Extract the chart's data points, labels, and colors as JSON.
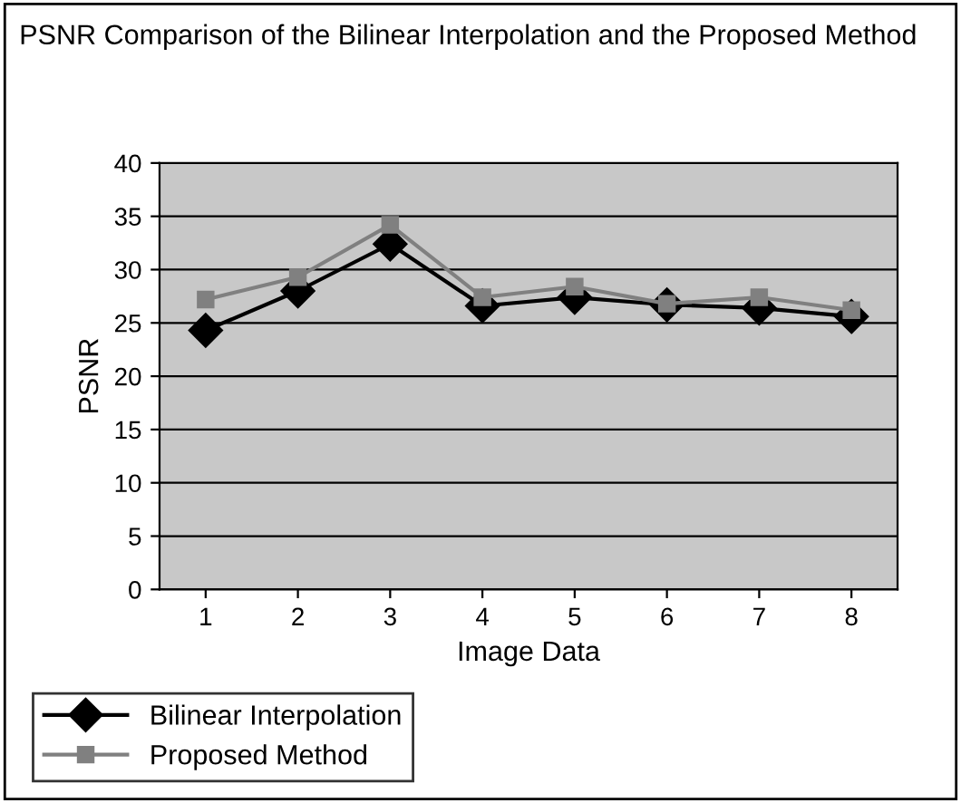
{
  "chart_data": {
    "type": "line",
    "title": "PSNR Comparison of the Bilinear Interpolation and the Proposed Method",
    "xlabel": "Image Data",
    "ylabel": "PSNR",
    "categories": [
      "1",
      "2",
      "3",
      "4",
      "5",
      "6",
      "7",
      "8"
    ],
    "series": [
      {
        "name": "Bilinear Interpolation",
        "color": "#000000",
        "marker": "diamond",
        "values": [
          24.3,
          28.0,
          32.4,
          26.6,
          27.4,
          26.7,
          26.4,
          25.6
        ]
      },
      {
        "name": "Proposed Method",
        "color": "#808080",
        "marker": "square",
        "values": [
          27.2,
          29.3,
          34.2,
          27.4,
          28.4,
          26.8,
          27.4,
          26.2
        ]
      }
    ],
    "ylim": [
      0,
      40
    ],
    "yticks": [
      0,
      5,
      10,
      15,
      20,
      25,
      30,
      35,
      40
    ],
    "grid": "y",
    "legend": "bottom left",
    "line_style": "solid"
  }
}
